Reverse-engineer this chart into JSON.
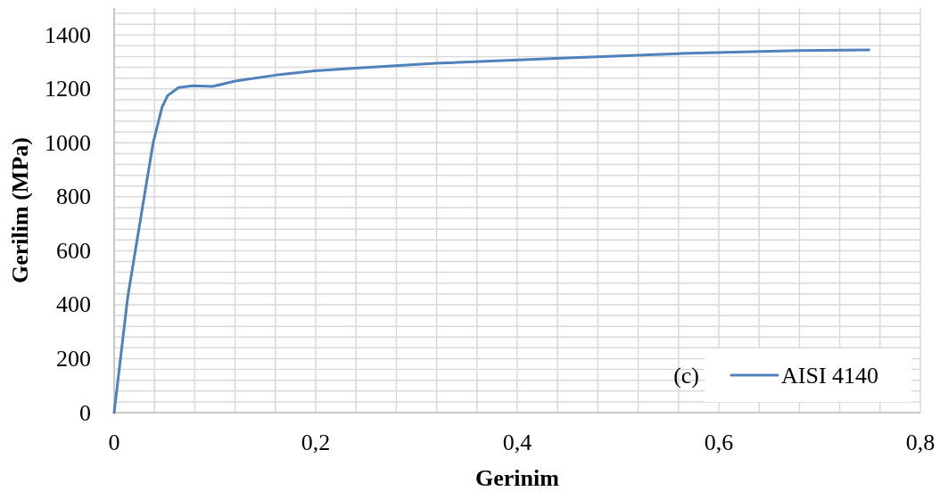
{
  "chart_data": {
    "type": "line",
    "xlabel": "Gerinim",
    "ylabel": "Gerilim (MPa)",
    "xlim": [
      0,
      0.8
    ],
    "ylim": [
      0,
      1500
    ],
    "xticks": [
      0,
      {
        "value": 0.04,
        "label": null
      },
      {
        "value": 0.08,
        "label": null
      },
      {
        "value": 0.12,
        "label": null
      },
      {
        "value": 0.16,
        "label": null
      },
      {
        "value": 0.2,
        "label": "0,2"
      },
      {
        "value": 0.24,
        "label": null
      },
      {
        "value": 0.28,
        "label": null
      },
      {
        "value": 0.32,
        "label": null
      },
      {
        "value": 0.36,
        "label": null
      },
      {
        "value": 0.4,
        "label": "0,4"
      },
      {
        "value": 0.44,
        "label": null
      },
      {
        "value": 0.48,
        "label": null
      },
      {
        "value": 0.52,
        "label": null
      },
      {
        "value": 0.56,
        "label": null
      },
      {
        "value": 0.6,
        "label": "0,6"
      },
      {
        "value": 0.64,
        "label": null
      },
      {
        "value": 0.68,
        "label": null
      },
      {
        "value": 0.72,
        "label": null
      },
      {
        "value": 0.76,
        "label": null
      },
      {
        "value": 0.8,
        "label": "0,8"
      }
    ],
    "yticks": [
      0,
      {
        "value": 40,
        "label": null
      },
      {
        "value": 80,
        "label": null
      },
      {
        "value": 120,
        "label": null
      },
      {
        "value": 160,
        "label": null
      },
      200,
      {
        "value": 240,
        "label": null
      },
      {
        "value": 280,
        "label": null
      },
      {
        "value": 320,
        "label": null
      },
      {
        "value": 360,
        "label": null
      },
      400,
      {
        "value": 440,
        "label": null
      },
      {
        "value": 480,
        "label": null
      },
      {
        "value": 520,
        "label": null
      },
      {
        "value": 560,
        "label": null
      },
      600,
      {
        "value": 640,
        "label": null
      },
      {
        "value": 680,
        "label": null
      },
      {
        "value": 720,
        "label": null
      },
      {
        "value": 760,
        "label": null
      },
      800,
      {
        "value": 840,
        "label": null
      },
      {
        "value": 880,
        "label": null
      },
      {
        "value": 920,
        "label": null
      },
      {
        "value": 960,
        "label": null
      },
      1000,
      {
        "value": 1040,
        "label": null
      },
      {
        "value": 1080,
        "label": null
      },
      {
        "value": 1120,
        "label": null
      },
      {
        "value": 1160,
        "label": null
      },
      1200,
      {
        "value": 1240,
        "label": null
      },
      {
        "value": 1280,
        "label": null
      },
      {
        "value": 1320,
        "label": null
      },
      {
        "value": 1360,
        "label": null
      },
      1400,
      {
        "value": 1440,
        "label": null
      },
      {
        "value": 1480,
        "label": null
      }
    ],
    "grid": true,
    "legend": "bottom right",
    "annotations": [
      "(c)"
    ],
    "series": [
      {
        "name": "AISI 4140",
        "color": "#4f81bd",
        "x": [
          0,
          0.0135,
          0.028,
          0.0387,
          0.0475,
          0.053,
          0.064,
          0.078,
          0.0976,
          0.12,
          0.16,
          0.199,
          0.239,
          0.319,
          0.439,
          0.559,
          0.679,
          0.749
        ],
        "values": [
          0,
          429,
          759,
          1000,
          1132,
          1175,
          1205,
          1212,
          1209,
          1229,
          1251,
          1267,
          1277,
          1295,
          1313,
          1331,
          1342,
          1345
        ]
      }
    ]
  }
}
